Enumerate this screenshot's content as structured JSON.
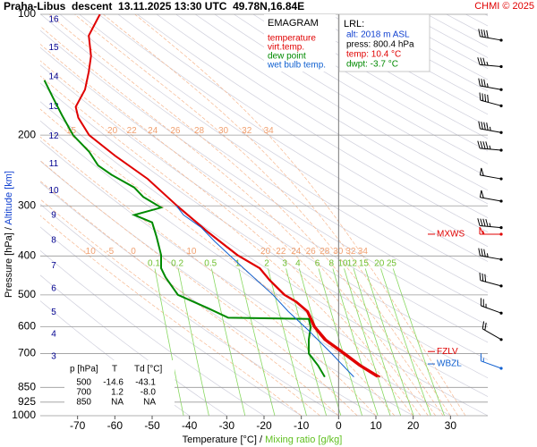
{
  "chart_data": {
    "type": "emagram",
    "title": "Praha-Libus  descent  13.11.2025 13:30 UTC  49.78N,16.84E",
    "credit": "CHMI © 2025",
    "xlabel": [
      "Temperature [°C]",
      "/",
      "Mixing ratio [g/kg]"
    ],
    "ylabel": [
      "Pressure [hPa]",
      "/",
      "Altitude [km]"
    ],
    "xlim": [
      -80,
      40
    ],
    "xticks": [
      -70,
      -60,
      -50,
      -40,
      -30,
      -20,
      -10,
      0,
      10,
      20,
      30
    ],
    "ylim": [
      1000,
      100
    ],
    "log_y": true,
    "yticks": [
      100,
      200,
      300,
      400,
      500,
      600,
      700,
      850,
      925,
      1000
    ],
    "isotherms": [
      0
    ],
    "altitude_ticks": [
      {
        "value": 713,
        "label": "3"
      },
      {
        "value": 626,
        "label": "4"
      },
      {
        "value": 552,
        "label": "5"
      },
      {
        "value": 483,
        "label": "6"
      },
      {
        "value": 423,
        "label": "7"
      },
      {
        "value": 366,
        "label": "8"
      },
      {
        "value": 317,
        "label": "9"
      },
      {
        "value": 275,
        "label": "10"
      },
      {
        "value": 236,
        "label": "11"
      },
      {
        "value": 201,
        "label": "12"
      },
      {
        "value": 170,
        "label": "13"
      },
      {
        "value": 143,
        "label": "14"
      },
      {
        "value": 121,
        "label": "15"
      },
      {
        "value": 103,
        "label": "16"
      }
    ],
    "legend_title": "EMAGRAM",
    "series": [
      {
        "name": "temperature",
        "color": "#e00000",
        "p": [
          800.4,
          750,
          700,
          647,
          600,
          550,
          520,
          500,
          460,
          429,
          398,
          349,
          300,
          257,
          226,
          200,
          181,
          170,
          154,
          139,
          127,
          113,
          102,
          100
        ],
        "values": [
          10.4,
          5.5,
          1.2,
          -3.8,
          -6.7,
          -8.5,
          -11.5,
          -14.6,
          -18.5,
          -21.2,
          -27.2,
          -35,
          -43.3,
          -51.2,
          -59.7,
          -66.9,
          -69.8,
          -70.5,
          -68,
          -67,
          -66.4,
          -67,
          -64.5,
          -64
        ]
      },
      {
        "name": "virt.temp.",
        "color": "#e00000",
        "p": [
          800.4,
          750,
          700,
          647,
          600,
          550,
          520,
          500,
          460,
          429,
          398,
          349,
          300
        ],
        "values": [
          11.1,
          6.1,
          1.8,
          -3.3,
          -6.3,
          -8.2,
          -11.3,
          -14.4,
          -18.4,
          -21.1,
          -27.1,
          -35,
          -43.3
        ]
      },
      {
        "name": "dew point",
        "color": "#008a00",
        "p": [
          800.4,
          750,
          700,
          647,
          600,
          574,
          570,
          540,
          500,
          452,
          429,
          398,
          359,
          330,
          316,
          303,
          285,
          270,
          251,
          238,
          220,
          200,
          179,
          162,
          146
        ],
        "values": [
          -3.7,
          -5.5,
          -8.0,
          -8.0,
          -7.5,
          -8,
          -29.6,
          -35,
          -43.1,
          -46.4,
          -47.6,
          -47.6,
          -48.8,
          -50,
          -54.8,
          -47.6,
          -52.4,
          -54.8,
          -60.9,
          -64.5,
          -66.9,
          -71.2,
          -74.1,
          -76.5,
          -78.9
        ]
      },
      {
        "name": "wet bulb temp.",
        "color": "#1060d0",
        "p": [
          800.4,
          700,
          614,
          550,
          500,
          429,
          368,
          340,
          316,
          300
        ],
        "values": [
          4.1,
          -1.9,
          -8,
          -13.5,
          -17.6,
          -25.5,
          -33.2,
          -36.8,
          -41.6,
          -43.5
        ]
      }
    ],
    "dry_adiabats": [
      -40,
      -30,
      -20,
      -10,
      0,
      10,
      20,
      30,
      40,
      50,
      60,
      70,
      80,
      90,
      100,
      110,
      120,
      130,
      140,
      150,
      160,
      170,
      180,
      190,
      200,
      210,
      220,
      230,
      240,
      250,
      260,
      270,
      280,
      290,
      300,
      310,
      320,
      330,
      340
    ],
    "moist_adiabats": {
      "values": [
        -10,
        -5,
        0,
        5,
        10,
        15,
        20,
        22,
        24,
        26,
        28,
        30,
        32,
        34
      ],
      "upper_labels": [
        15,
        20,
        22,
        24,
        26,
        28,
        30,
        32,
        34
      ],
      "lower_labels": [
        -10,
        -5,
        0,
        10,
        20,
        22,
        24,
        26,
        28,
        30,
        32,
        34
      ]
    },
    "mixing_ratios": [
      0.1,
      0.2,
      0.5,
      1,
      2,
      3,
      4,
      6,
      8,
      10,
      12,
      15,
      20,
      25
    ],
    "levels": [
      {
        "label": "MXWS",
        "p": 353,
        "color": "#e00000"
      },
      {
        "label": "FZLV",
        "p": 692,
        "color": "#e00000"
      },
      {
        "label": "WBZL",
        "p": 743,
        "color": "#1060d0"
      }
    ],
    "wind": {
      "p": [
        116,
        135,
        154,
        169,
        197,
        218,
        257,
        292,
        340,
        353,
        408,
        475,
        555,
        646,
        762
      ],
      "dir": [
        280,
        275,
        280,
        285,
        280,
        275,
        280,
        280,
        275,
        270,
        280,
        285,
        290,
        300,
        290
      ],
      "speed": [
        40,
        35,
        35,
        40,
        45,
        45,
        50,
        50,
        45,
        55,
        35,
        30,
        25,
        20,
        15
      ],
      "colors": [
        "#000",
        "#000",
        "#000",
        "#000",
        "#000",
        "#000",
        "#000",
        "#000",
        "#000",
        "#e00000",
        "#000",
        "#000",
        "#000",
        "#000",
        "#1060d0"
      ]
    },
    "lrl": {
      "title": "LRL:",
      "lines": [
        {
          "text": "alt: 2018 m ASL",
          "color": "#1040d0"
        },
        {
          "text": "press: 800.4 hPa",
          "color": "#000"
        },
        {
          "text": "temp: 10.4 °C",
          "color": "#e00000"
        },
        {
          "text": "dwpt: -3.7 °C",
          "color": "#008a00"
        }
      ]
    },
    "table": {
      "header": [
        "p [hPa]",
        "T",
        "Td [°C]"
      ],
      "rows": [
        [
          "500",
          "-14.6",
          "-43.1"
        ],
        [
          "700",
          "1.2",
          "-8.0"
        ],
        [
          "850",
          "NA",
          "NA"
        ]
      ]
    }
  }
}
